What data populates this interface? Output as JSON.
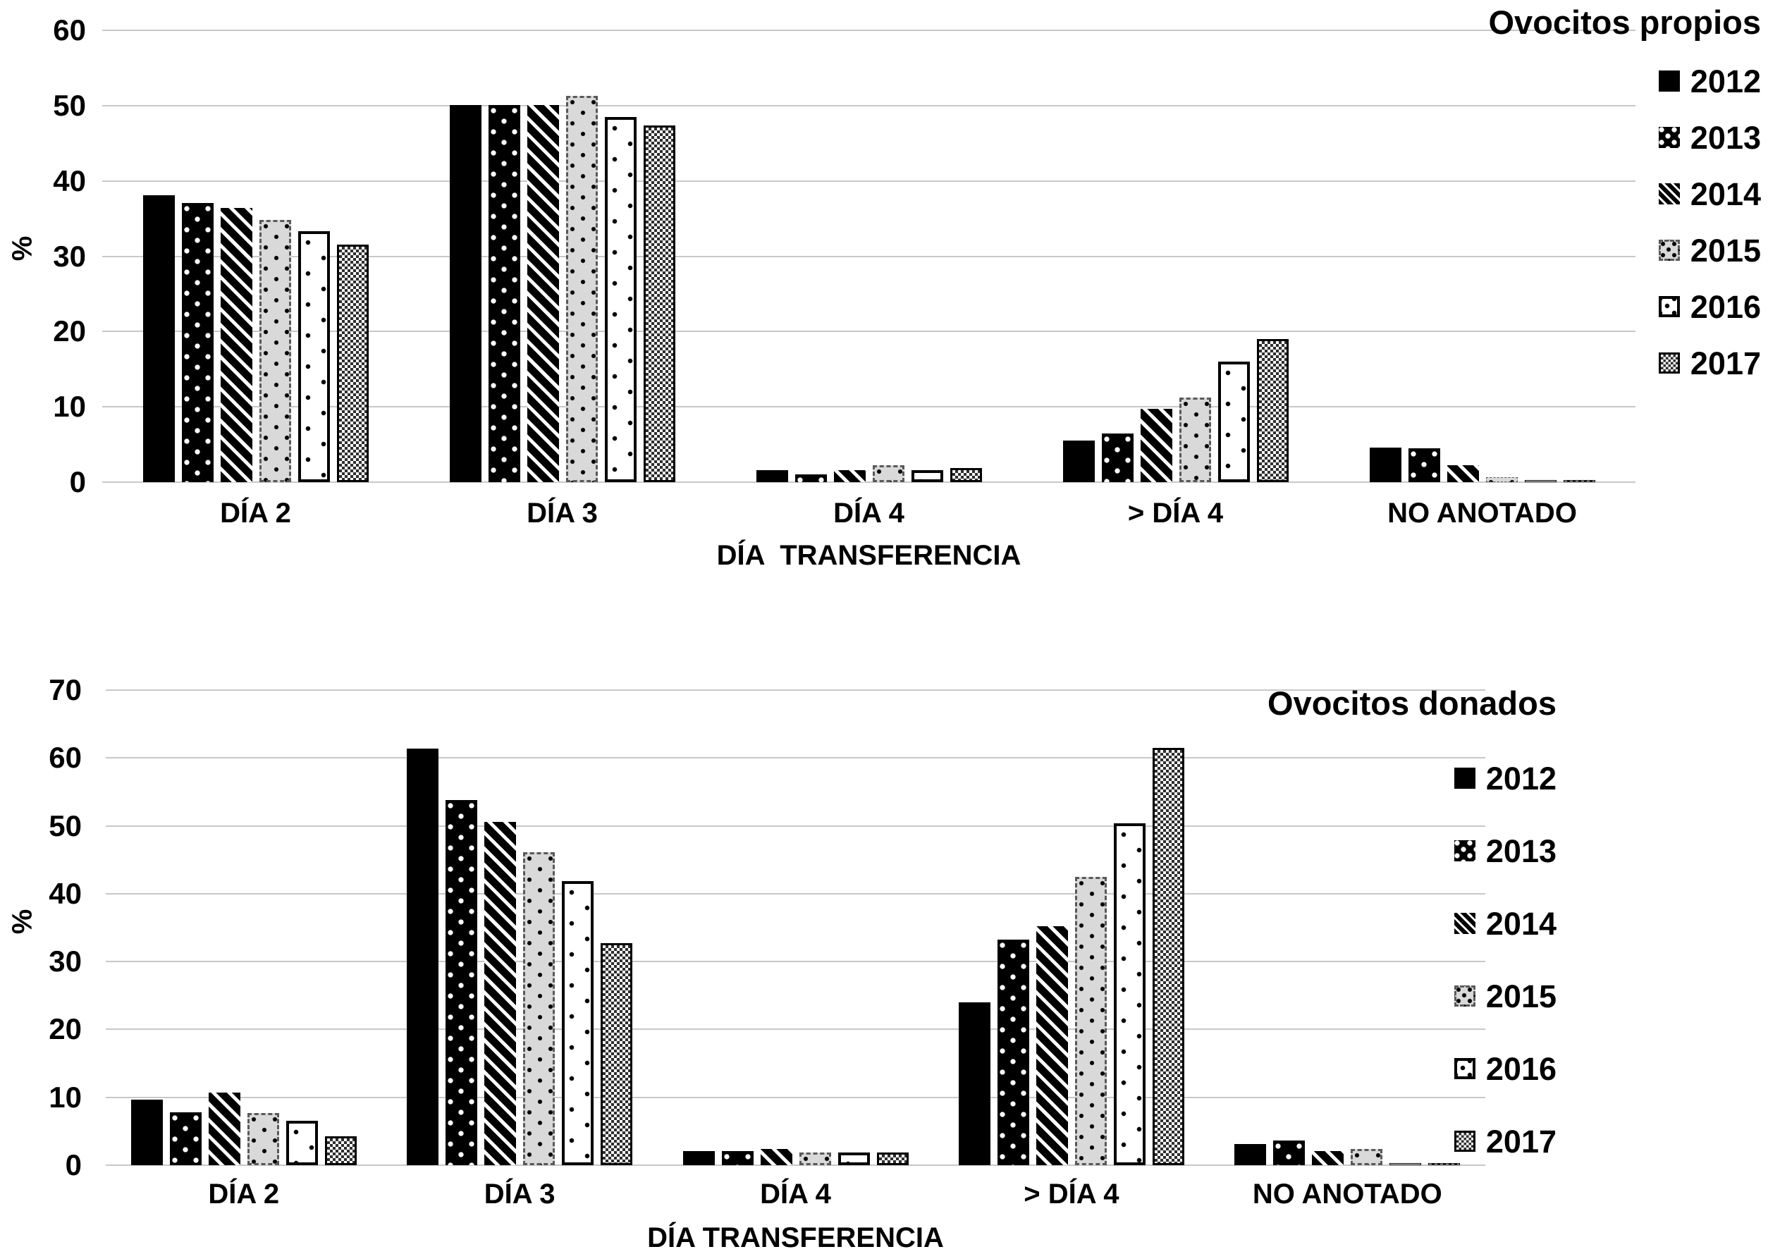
{
  "page": {
    "background": "#ffffff",
    "grid_color": "#c8c8c8"
  },
  "chart_data": [
    {
      "type": "bar",
      "title": "Ovocitos propios",
      "ylabel": "%",
      "xlabel": "DÍA  TRANSFERENCIA",
      "ylim": [
        0,
        60
      ],
      "yticks": [
        0,
        10,
        20,
        30,
        40,
        50,
        60
      ],
      "grid": true,
      "legend_position": "right",
      "categories": [
        "DÍA 2",
        "DÍA 3",
        "DÍA 4",
        "> DÍA 4",
        "NO ANOTADO"
      ],
      "series": [
        {
          "name": "2012",
          "pattern": "solid-black",
          "values": [
            38.1,
            50.1,
            1.6,
            5.5,
            4.6
          ]
        },
        {
          "name": "2013",
          "pattern": "white-dots-on-black",
          "values": [
            37.1,
            50.1,
            1.0,
            6.5,
            4.5
          ]
        },
        {
          "name": "2014",
          "pattern": "white-diagonal-stripes-on-black",
          "values": [
            36.4,
            50.1,
            1.6,
            9.7,
            2.2
          ]
        },
        {
          "name": "2015",
          "pattern": "black-dots-on-light-gray-dashed-border",
          "values": [
            34.8,
            51.3,
            2.2,
            11.2,
            0.7
          ]
        },
        {
          "name": "2016",
          "pattern": "sparse-black-dots-on-white-black-border",
          "values": [
            33.3,
            48.5,
            1.6,
            16.0,
            0.3
          ]
        },
        {
          "name": "2017",
          "pattern": "checkerboard",
          "values": [
            31.5,
            47.4,
            1.9,
            19.0,
            0.3
          ]
        }
      ]
    },
    {
      "type": "bar",
      "title": "Ovocitos donados",
      "ylabel": "%",
      "xlabel": "DÍA TRANSFERENCIA",
      "ylim": [
        0,
        70
      ],
      "yticks": [
        0,
        10,
        20,
        30,
        40,
        50,
        60,
        70
      ],
      "grid": true,
      "legend_position": "right",
      "categories": [
        "DÍA 2",
        "DÍA 3",
        "DÍA 4",
        "> DÍA 4",
        "NO ANOTADO"
      ],
      "series": [
        {
          "name": "2012",
          "pattern": "solid-black",
          "values": [
            9.7,
            61.4,
            2.1,
            24.0,
            3.1
          ]
        },
        {
          "name": "2013",
          "pattern": "white-dots-on-black",
          "values": [
            7.8,
            53.8,
            2.1,
            33.2,
            3.6
          ]
        },
        {
          "name": "2014",
          "pattern": "white-diagonal-stripes-on-black",
          "values": [
            10.7,
            50.6,
            2.4,
            35.2,
            2.1
          ]
        },
        {
          "name": "2015",
          "pattern": "black-dots-on-light-gray-dashed-border",
          "values": [
            7.7,
            46.1,
            1.9,
            42.5,
            2.4
          ]
        },
        {
          "name": "2016",
          "pattern": "sparse-black-dots-on-white-black-border",
          "values": [
            6.5,
            41.9,
            1.9,
            50.4,
            0.3
          ]
        },
        {
          "name": "2017",
          "pattern": "checkerboard",
          "values": [
            4.3,
            32.7,
            1.9,
            61.5,
            0.3
          ]
        }
      ]
    }
  ]
}
